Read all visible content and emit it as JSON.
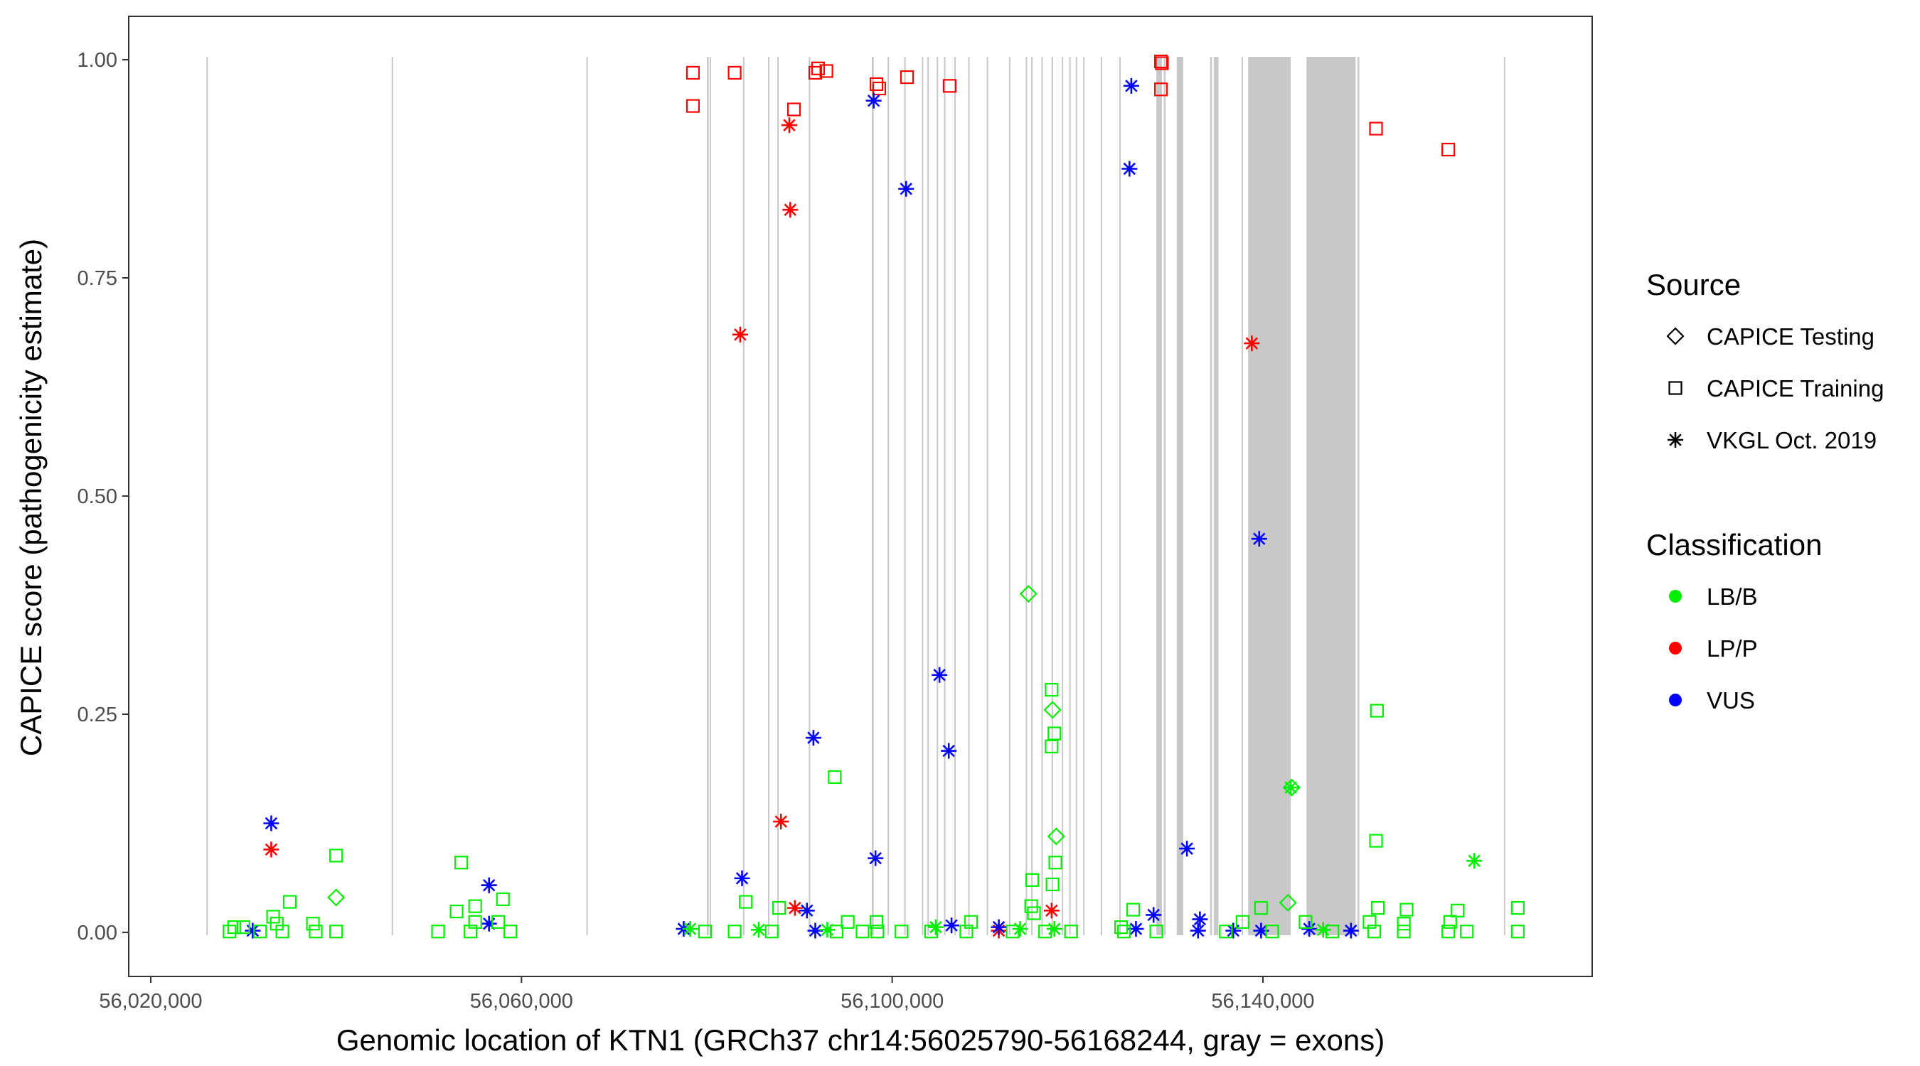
{
  "chart_data": {
    "type": "scatter",
    "title": "",
    "xlabel": "Genomic location of KTN1 (GRCh37 chr14:56025790-56168244, gray = exons)",
    "ylabel": "CAPICE score (pathogenicity estimate)",
    "xlim": [
      56020000,
      56168244
    ],
    "ylim": [
      0,
      1
    ],
    "x_ticks": [
      56020000,
      56060000,
      56100000,
      56140000
    ],
    "x_tick_labels": [
      "56,020,000",
      "56,060,000",
      "56,100,000",
      "56,140,000"
    ],
    "y_ticks": [
      0,
      0.25,
      0.5,
      0.75,
      1
    ],
    "y_tick_labels": [
      "0.00",
      "0.25",
      "0.50",
      "0.75",
      "1.00"
    ],
    "grid": false,
    "exons": [
      [
        56026000,
        56026100
      ],
      [
        56046000,
        56046100
      ],
      [
        56067000,
        56067100
      ],
      [
        56080000,
        56080200
      ],
      [
        56080300,
        56080450
      ],
      [
        56083900,
        56084000
      ],
      [
        56086600,
        56086700
      ],
      [
        56087600,
        56087700
      ],
      [
        56091000,
        56091100
      ],
      [
        56097800,
        56098000
      ],
      [
        56099500,
        56099600
      ],
      [
        56101300,
        56101450
      ],
      [
        56103200,
        56103350
      ],
      [
        56103800,
        56103900
      ],
      [
        56104800,
        56104900
      ],
      [
        56105600,
        56105700
      ],
      [
        56106700,
        56106800
      ],
      [
        56108200,
        56108300
      ],
      [
        56110200,
        56110300
      ],
      [
        56112600,
        56112700
      ],
      [
        56114400,
        56114550
      ],
      [
        56115000,
        56115100
      ],
      [
        56116100,
        56116200
      ],
      [
        56117200,
        56117300
      ],
      [
        56118300,
        56118400
      ],
      [
        56119100,
        56119200
      ],
      [
        56119800,
        56119900
      ],
      [
        56120600,
        56120700
      ],
      [
        56122500,
        56122650
      ],
      [
        56124500,
        56124600
      ],
      [
        56128500,
        56129100
      ],
      [
        56129300,
        56129500
      ],
      [
        56130700,
        56131400
      ],
      [
        56134300,
        56134500
      ],
      [
        56134700,
        56135200
      ],
      [
        56137700,
        56137850
      ],
      [
        56138400,
        56143000
      ],
      [
        56144700,
        56150000
      ],
      [
        56150200,
        56150400
      ],
      [
        56166000,
        56166100
      ]
    ],
    "legend": {
      "position": "right",
      "source_title": "Source",
      "source_items": [
        {
          "label": "CAPICE Testing",
          "shape": "diamond"
        },
        {
          "label": "CAPICE Training",
          "shape": "square"
        },
        {
          "label": "VKGL Oct. 2019",
          "shape": "asterisk"
        }
      ],
      "class_title": "Classification",
      "class_items": [
        {
          "label": "LB/B",
          "color": "#00ee00"
        },
        {
          "label": "LP/P",
          "color": "#ff0000"
        },
        {
          "label": "VUS",
          "color": "#0000ff"
        }
      ]
    },
    "series": [
      {
        "source": "CAPICE Training",
        "classification": "LP/P",
        "points": [
          [
            56078500,
            0.985
          ],
          [
            56078500,
            0.947
          ],
          [
            56083000,
            0.985
          ],
          [
            56089400,
            0.943
          ],
          [
            56091700,
            0.985
          ],
          [
            56092000,
            0.99
          ],
          [
            56092900,
            0.987
          ],
          [
            56098300,
            0.972
          ],
          [
            56098600,
            0.967
          ],
          [
            56101600,
            0.98
          ],
          [
            56106200,
            0.97
          ],
          [
            56129000,
            0.998
          ],
          [
            56129100,
            0.996
          ],
          [
            56129000,
            0.966
          ],
          [
            56152200,
            0.921
          ],
          [
            56160000,
            0.897
          ]
        ]
      },
      {
        "source": "VKGL Oct. 2019",
        "classification": "LP/P",
        "points": [
          [
            56083600,
            0.685
          ],
          [
            56088900,
            0.925
          ],
          [
            56089000,
            0.828
          ],
          [
            56088000,
            0.127
          ],
          [
            56089500,
            0.028
          ],
          [
            56111500,
            0.002
          ],
          [
            56117200,
            0.025
          ],
          [
            56138800,
            0.675
          ],
          [
            56033000,
            0.095
          ]
        ]
      },
      {
        "source": "VKGL Oct. 2019",
        "classification": "VUS",
        "points": [
          [
            56098000,
            0.953
          ],
          [
            56101500,
            0.852
          ],
          [
            56125800,
            0.97
          ],
          [
            56125600,
            0.875
          ],
          [
            56139600,
            0.451
          ],
          [
            56131800,
            0.096
          ],
          [
            56105100,
            0.295
          ],
          [
            56106100,
            0.208
          ],
          [
            56091500,
            0.223
          ],
          [
            56083800,
            0.062
          ],
          [
            56098200,
            0.085
          ],
          [
            56090800,
            0.025
          ],
          [
            56033000,
            0.125
          ],
          [
            56031000,
            0.002
          ],
          [
            56056500,
            0.054
          ],
          [
            56056500,
            0.01
          ],
          [
            56077500,
            0.004
          ],
          [
            56091700,
            0.002
          ],
          [
            56106400,
            0.008
          ],
          [
            56111500,
            0.006
          ],
          [
            56126300,
            0.004
          ],
          [
            56128200,
            0.02
          ],
          [
            56133200,
            0.015
          ],
          [
            56133000,
            0.002
          ],
          [
            56136800,
            0.002
          ],
          [
            56139800,
            0.002
          ],
          [
            56145000,
            0.004
          ],
          [
            56149500,
            0.002
          ]
        ]
      },
      {
        "source": "VKGL Oct. 2019",
        "classification": "LB/B",
        "points": [
          [
            56078200,
            0.004
          ],
          [
            56085600,
            0.003
          ],
          [
            56093000,
            0.003
          ],
          [
            56104700,
            0.006
          ],
          [
            56113800,
            0.004
          ],
          [
            56117500,
            0.004
          ],
          [
            56143000,
            0.166
          ],
          [
            56162800,
            0.082
          ],
          [
            56146500,
            0.003
          ]
        ]
      },
      {
        "source": "CAPICE Testing",
        "classification": "LB/B",
        "points": [
          [
            56114700,
            0.388
          ],
          [
            56117300,
            0.255
          ],
          [
            56117700,
            0.11
          ],
          [
            56040000,
            0.04
          ],
          [
            56142700,
            0.034
          ],
          [
            56143100,
            0.166
          ]
        ]
      },
      {
        "source": "CAPICE Training",
        "classification": "LB/B",
        "points": [
          [
            56093800,
            0.178
          ],
          [
            56117200,
            0.278
          ],
          [
            56117500,
            0.228
          ],
          [
            56117200,
            0.213
          ],
          [
            56117600,
            0.08
          ],
          [
            56152300,
            0.254
          ],
          [
            56152200,
            0.105
          ],
          [
            56115100,
            0.06
          ],
          [
            56117300,
            0.055
          ],
          [
            56040000,
            0.088
          ],
          [
            56053500,
            0.08
          ],
          [
            56035000,
            0.035
          ],
          [
            56058000,
            0.038
          ],
          [
            56055000,
            0.03
          ],
          [
            56084200,
            0.035
          ],
          [
            56087800,
            0.028
          ],
          [
            56139800,
            0.028
          ],
          [
            56126000,
            0.026
          ],
          [
            56152400,
            0.028
          ],
          [
            56155500,
            0.026
          ],
          [
            56161000,
            0.025
          ],
          [
            56167500,
            0.028
          ],
          [
            56029000,
            0.006
          ],
          [
            56030000,
            0.006
          ],
          [
            56033200,
            0.018
          ],
          [
            56033600,
            0.01
          ],
          [
            56037500,
            0.01
          ],
          [
            56053000,
            0.024
          ],
          [
            56055000,
            0.012
          ],
          [
            56057500,
            0.012
          ],
          [
            56098300,
            0.012
          ],
          [
            56095200,
            0.012
          ],
          [
            56108500,
            0.012
          ],
          [
            56115000,
            0.03
          ],
          [
            56115300,
            0.022
          ],
          [
            56124700,
            0.006
          ],
          [
            56137800,
            0.012
          ],
          [
            56144600,
            0.012
          ],
          [
            56151500,
            0.012
          ],
          [
            56155200,
            0.01
          ],
          [
            56160200,
            0.012
          ],
          [
            56028500,
            0.001
          ],
          [
            56031800,
            0.001
          ],
          [
            56034200,
            0.001
          ],
          [
            56037800,
            0.001
          ],
          [
            56040000,
            0.001
          ],
          [
            56051000,
            0.001
          ],
          [
            56054500,
            0.001
          ],
          [
            56058800,
            0.001
          ],
          [
            56079800,
            0.001
          ],
          [
            56083000,
            0.001
          ],
          [
            56087000,
            0.001
          ],
          [
            56094000,
            0.001
          ],
          [
            56096800,
            0.001
          ],
          [
            56098400,
            0.001
          ],
          [
            56101000,
            0.001
          ],
          [
            56104200,
            0.001
          ],
          [
            56108000,
            0.001
          ],
          [
            56113000,
            0.001
          ],
          [
            56116500,
            0.001
          ],
          [
            56119300,
            0.001
          ],
          [
            56125000,
            0.001
          ],
          [
            56128500,
            0.001
          ],
          [
            56136000,
            0.001
          ],
          [
            56141000,
            0.001
          ],
          [
            56147500,
            0.001
          ],
          [
            56152000,
            0.001
          ],
          [
            56155200,
            0.001
          ],
          [
            56160000,
            0.001
          ],
          [
            56162000,
            0.001
          ],
          [
            56167500,
            0.001
          ]
        ]
      }
    ]
  }
}
